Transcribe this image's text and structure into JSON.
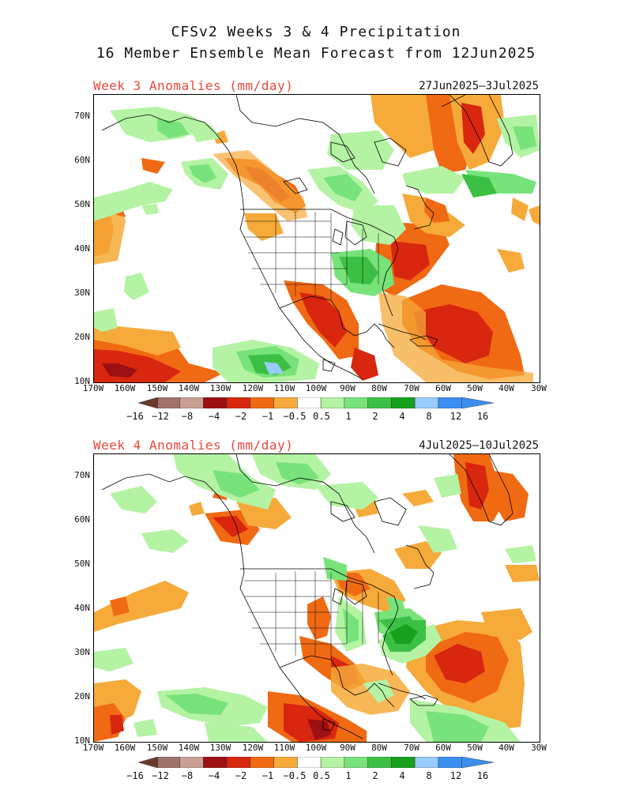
{
  "header": {
    "line1": "CFSv2 Weeks 3 & 4 Precipitation",
    "line2": "16 Member Ensemble Mean Forecast from 12Jun2025"
  },
  "panels": [
    {
      "title": "Week 3 Anomalies (mm/day)",
      "dates": "27Jun2025–3Jul2025"
    },
    {
      "title": "Week 4 Anomalies (mm/day)",
      "dates": "4Jul2025–10Jul2025"
    }
  ],
  "axes": {
    "lat_labels": [
      "70N",
      "60N",
      "50N",
      "40N",
      "30N",
      "20N",
      "10N"
    ],
    "lon_labels": [
      "170W",
      "160W",
      "150W",
      "140W",
      "130W",
      "120W",
      "110W",
      "100W",
      "90W",
      "80W",
      "70W",
      "60W",
      "50W",
      "40W",
      "30W"
    ]
  },
  "colorbar": {
    "labels": [
      "−16",
      "−12",
      "−8",
      "−4",
      "−2",
      "−1",
      "−0.5",
      "0.5",
      "1",
      "2",
      "4",
      "8",
      "12",
      "16"
    ],
    "colors": [
      "#6b3a2a",
      "#a0736a",
      "#c9a093",
      "#9c0f12",
      "#d8260f",
      "#f06a14",
      "#f6aa3a",
      "#ffffff",
      "#b4f3a4",
      "#78e37a",
      "#3cc043",
      "#16a01e",
      "#99ccff",
      "#3c8ef0"
    ],
    "under_color": "#6b3a2a",
    "over_color": "#3c8ef0"
  },
  "palette": {
    "dry1": "#f6aa3a",
    "dry2": "#f06a14",
    "dry3": "#d8260f",
    "dry4": "#9c0f12",
    "dry5": "#c9a093",
    "wet1": "#b4f3a4",
    "wet2": "#78e37a",
    "wet3": "#3cc043",
    "wet4": "#16a01e",
    "wet5": "#99ccff"
  }
}
